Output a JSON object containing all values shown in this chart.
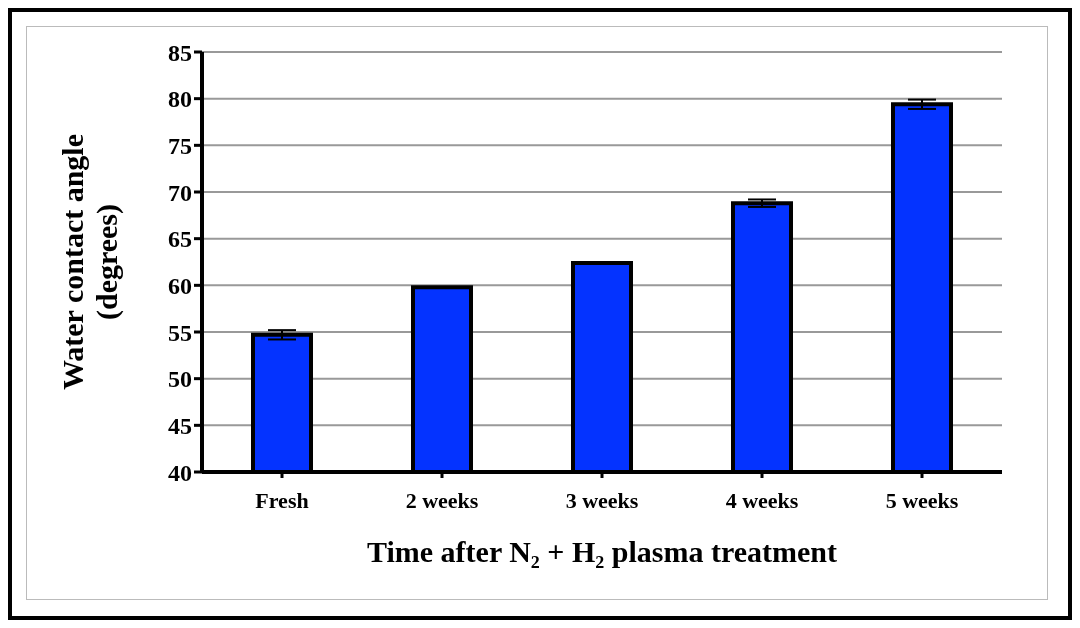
{
  "chart_data": {
    "type": "bar",
    "xlabel": "Time after N₂ + H₂ plasma treatment",
    "ylabel": "Water contact angle (degrees)",
    "categories": [
      "Fresh",
      "2 weeks",
      "3 weeks",
      "4 weeks",
      "5 weeks"
    ],
    "values": [
      54.7,
      59.8,
      62.4,
      68.8,
      79.4
    ],
    "errors": [
      0.5,
      null,
      null,
      0.4,
      0.5
    ],
    "color": "#0433ff",
    "ylim": [
      40,
      85
    ],
    "yticks": [
      40,
      45,
      50,
      55,
      60,
      65,
      70,
      75,
      80,
      85
    ],
    "grid": "y",
    "legend": false
  }
}
